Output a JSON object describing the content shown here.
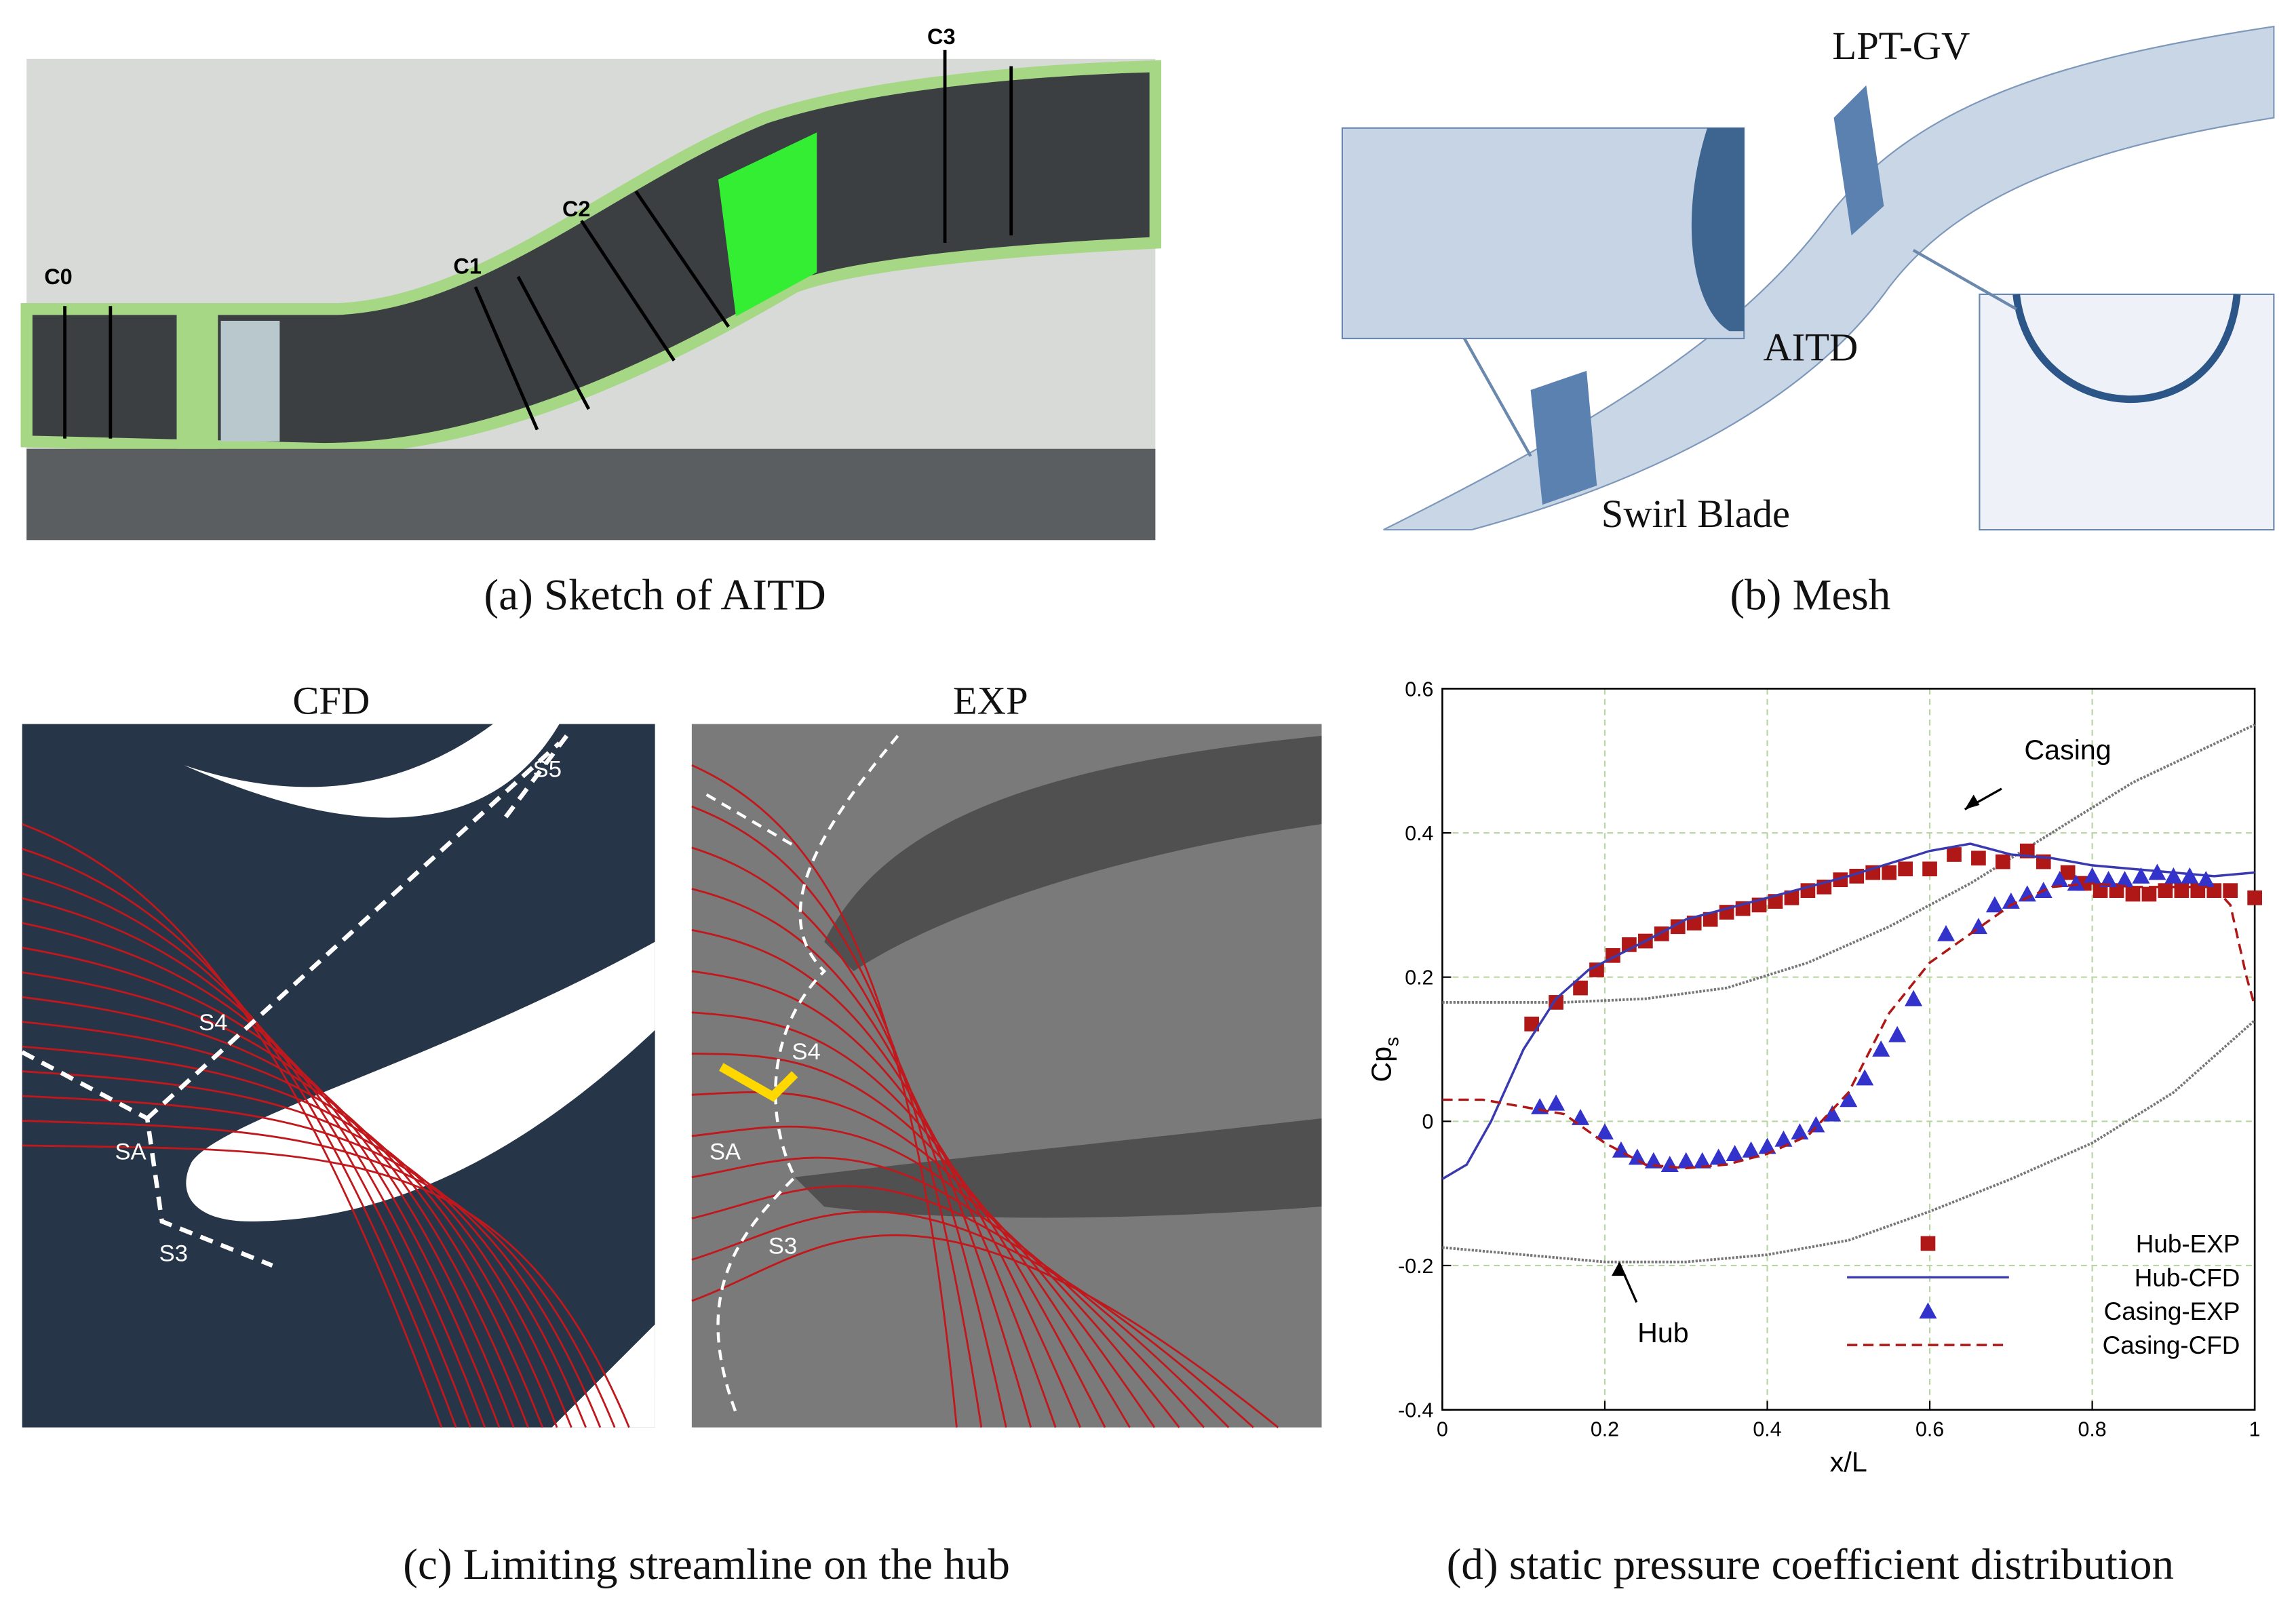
{
  "panels": {
    "a": {
      "caption": "(a) Sketch of AITD",
      "labels": [
        "C0",
        "C1",
        "C2",
        "C3"
      ]
    },
    "b": {
      "caption": "(b) Mesh",
      "labels": [
        "LPT-GV",
        "AITD",
        "Swirl Blade"
      ]
    },
    "c": {
      "caption": "(c) Limiting streamline on the hub",
      "cfd": {
        "title": "CFD",
        "labels": [
          "S5",
          "S4",
          "SA",
          "S3"
        ]
      },
      "exp": {
        "title": "EXP",
        "labels": [
          "S4",
          "SA",
          "S3"
        ]
      }
    },
    "d": {
      "caption": "(d) static pressure coefficient distribution"
    }
  },
  "chart_data": {
    "type": "scatter",
    "xlabel": "x/L",
    "ylabel": "Cp",
    "ylabel_subscript": "s",
    "xlim": [
      0,
      1
    ],
    "ylim": [
      -0.4,
      0.6
    ],
    "xticks": [
      0,
      0.2,
      0.4,
      0.6,
      0.8,
      1
    ],
    "yticks": [
      -0.4,
      -0.2,
      0,
      0.2,
      0.4,
      0.6
    ],
    "grid": true,
    "legend": "lower right",
    "geometry": [
      {
        "label": "Casing",
        "color": "#777777",
        "x": [
          0,
          0.15,
          0.25,
          0.35,
          0.45,
          0.55,
          0.65,
          0.75,
          0.85,
          1.0
        ],
        "values": [
          0.165,
          0.165,
          0.17,
          0.185,
          0.22,
          0.27,
          0.33,
          0.4,
          0.47,
          0.55
        ]
      },
      {
        "label": "Hub",
        "color": "#777777",
        "x": [
          0,
          0.1,
          0.2,
          0.3,
          0.4,
          0.5,
          0.6,
          0.7,
          0.8,
          0.9,
          1.0
        ],
        "values": [
          -0.175,
          -0.185,
          -0.195,
          -0.195,
          -0.185,
          -0.165,
          -0.125,
          -0.08,
          -0.03,
          0.04,
          0.14
        ]
      }
    ],
    "series": [
      {
        "name": "Hub-EXP",
        "color": "#b01818",
        "marker": "square",
        "x": [
          0.11,
          0.14,
          0.17,
          0.19,
          0.21,
          0.23,
          0.25,
          0.27,
          0.29,
          0.31,
          0.33,
          0.35,
          0.37,
          0.39,
          0.41,
          0.43,
          0.45,
          0.47,
          0.49,
          0.51,
          0.53,
          0.55,
          0.57,
          0.6,
          0.63,
          0.66,
          0.69,
          0.72,
          0.74,
          0.77,
          0.79,
          0.81,
          0.83,
          0.85,
          0.87,
          0.89,
          0.91,
          0.93,
          0.95,
          0.97,
          1.0
        ],
        "values": [
          0.135,
          0.165,
          0.185,
          0.21,
          0.23,
          0.245,
          0.25,
          0.26,
          0.27,
          0.275,
          0.28,
          0.29,
          0.295,
          0.3,
          0.305,
          0.31,
          0.32,
          0.325,
          0.335,
          0.34,
          0.345,
          0.345,
          0.35,
          0.35,
          0.37,
          0.365,
          0.36,
          0.375,
          0.36,
          0.345,
          0.33,
          0.32,
          0.32,
          0.315,
          0.315,
          0.32,
          0.32,
          0.32,
          0.32,
          0.32,
          0.31
        ]
      },
      {
        "name": "Hub-CFD",
        "color": "#3a3ab0",
        "line": "solid",
        "x": [
          0,
          0.03,
          0.06,
          0.1,
          0.14,
          0.18,
          0.25,
          0.3,
          0.4,
          0.5,
          0.6,
          0.65,
          0.7,
          0.75,
          0.8,
          0.85,
          0.9,
          0.95,
          1.0
        ],
        "values": [
          -0.08,
          -0.06,
          0.0,
          0.1,
          0.17,
          0.21,
          0.25,
          0.28,
          0.31,
          0.34,
          0.375,
          0.385,
          0.37,
          0.365,
          0.355,
          0.35,
          0.345,
          0.34,
          0.345
        ]
      },
      {
        "name": "Casing-EXP",
        "color": "#3333cc",
        "marker": "triangle",
        "x": [
          0.12,
          0.14,
          0.17,
          0.2,
          0.22,
          0.24,
          0.26,
          0.28,
          0.3,
          0.32,
          0.34,
          0.36,
          0.38,
          0.4,
          0.42,
          0.44,
          0.46,
          0.48,
          0.5,
          0.52,
          0.54,
          0.56,
          0.58,
          0.62,
          0.66,
          0.68,
          0.7,
          0.72,
          0.74,
          0.76,
          0.78,
          0.8,
          0.82,
          0.84,
          0.86,
          0.88,
          0.9,
          0.92,
          0.94
        ],
        "values": [
          0.02,
          0.025,
          0.005,
          -0.015,
          -0.04,
          -0.05,
          -0.055,
          -0.06,
          -0.055,
          -0.055,
          -0.05,
          -0.045,
          -0.04,
          -0.035,
          -0.025,
          -0.015,
          -0.005,
          0.01,
          0.03,
          0.06,
          0.1,
          0.12,
          0.17,
          0.26,
          0.27,
          0.3,
          0.305,
          0.315,
          0.32,
          0.335,
          0.33,
          0.34,
          0.335,
          0.335,
          0.34,
          0.345,
          0.34,
          0.34,
          0.335
        ]
      },
      {
        "name": "Casing-CFD",
        "color": "#b01818",
        "line": "dashed",
        "x": [
          0,
          0.05,
          0.1,
          0.15,
          0.2,
          0.25,
          0.3,
          0.35,
          0.4,
          0.45,
          0.5,
          0.55,
          0.6,
          0.65,
          0.7,
          0.75,
          0.8,
          0.85,
          0.9,
          0.95,
          0.97,
          0.99,
          1.0
        ],
        "values": [
          0.03,
          0.03,
          0.02,
          0.01,
          -0.03,
          -0.06,
          -0.065,
          -0.06,
          -0.045,
          -0.02,
          0.04,
          0.15,
          0.22,
          0.26,
          0.3,
          0.325,
          0.33,
          0.325,
          0.325,
          0.325,
          0.3,
          0.2,
          0.16
        ]
      }
    ]
  }
}
